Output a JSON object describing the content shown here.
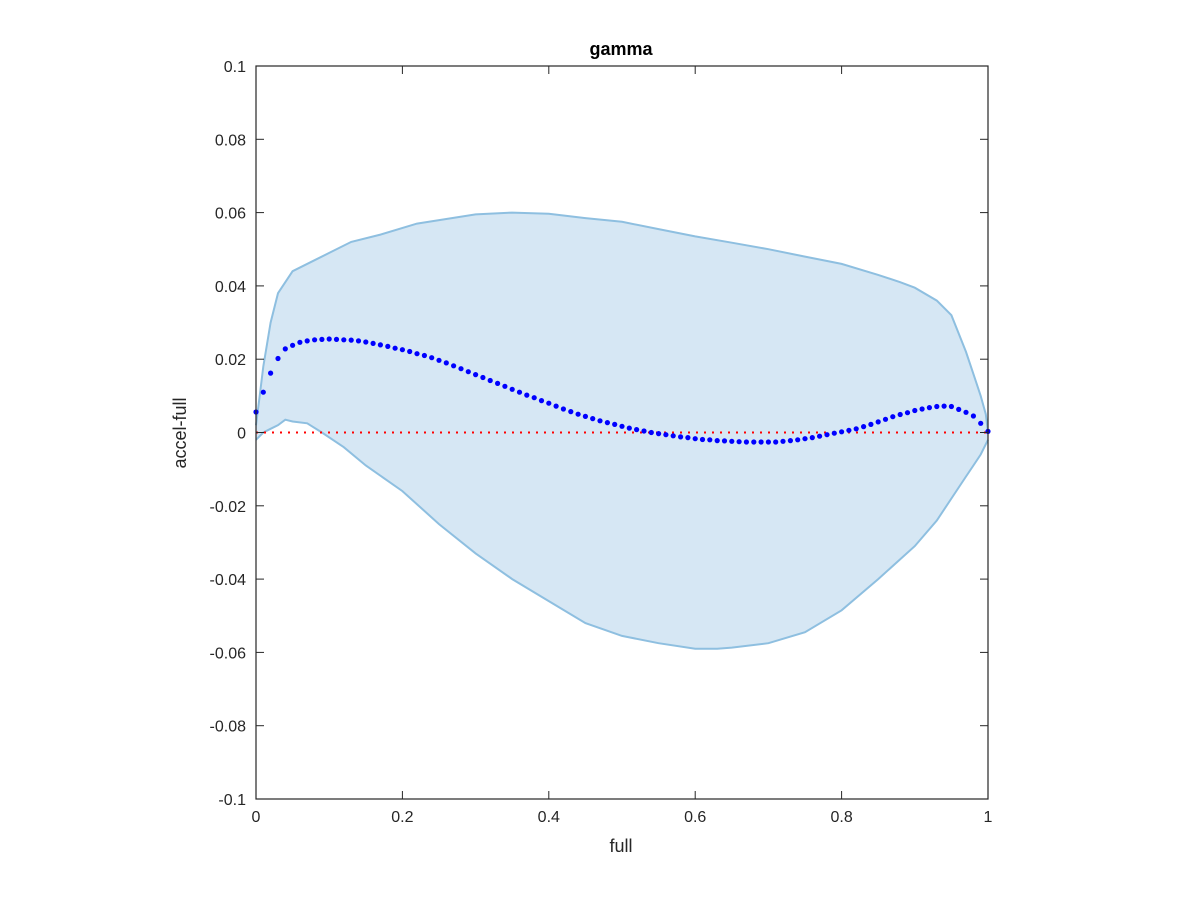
{
  "chart_data": {
    "type": "scatter",
    "title": "gamma",
    "xlabel": "full",
    "ylabel": "accel-full",
    "xlim": [
      0,
      1
    ],
    "ylim": [
      -0.1,
      0.1
    ],
    "xticks": [
      0,
      0.2,
      0.4,
      0.6,
      0.8,
      1
    ],
    "xtick_labels": [
      "0",
      "0.2",
      "0.4",
      "0.6",
      "0.8",
      "1"
    ],
    "yticks": [
      -0.1,
      -0.08,
      -0.06,
      -0.04,
      -0.02,
      0,
      0.02,
      0.04,
      0.06,
      0.08,
      0.1
    ],
    "ytick_labels": [
      "-0.1",
      "-0.08",
      "-0.06",
      "-0.04",
      "-0.02",
      "0",
      "0.02",
      "0.04",
      "0.06",
      "0.08",
      "0.1"
    ],
    "grid": false,
    "band": {
      "fill_color": "#d6e7f4",
      "edge_color": "#8ebfe0",
      "upper": [
        [
          0,
          0.002
        ],
        [
          0.005,
          0.01
        ],
        [
          0.01,
          0.018
        ],
        [
          0.02,
          0.03
        ],
        [
          0.03,
          0.038
        ],
        [
          0.05,
          0.044
        ],
        [
          0.08,
          0.047
        ],
        [
          0.1,
          0.049
        ],
        [
          0.13,
          0.052
        ],
        [
          0.17,
          0.054
        ],
        [
          0.22,
          0.057
        ],
        [
          0.3,
          0.0595
        ],
        [
          0.35,
          0.06
        ],
        [
          0.4,
          0.0597
        ],
        [
          0.45,
          0.0585
        ],
        [
          0.5,
          0.0575
        ],
        [
          0.55,
          0.0555
        ],
        [
          0.6,
          0.0535
        ],
        [
          0.65,
          0.0518
        ],
        [
          0.7,
          0.05
        ],
        [
          0.75,
          0.048
        ],
        [
          0.8,
          0.046
        ],
        [
          0.85,
          0.043
        ],
        [
          0.88,
          0.041
        ],
        [
          0.9,
          0.0395
        ],
        [
          0.93,
          0.036
        ],
        [
          0.95,
          0.032
        ],
        [
          0.96,
          0.027
        ],
        [
          0.97,
          0.022
        ],
        [
          0.98,
          0.016
        ],
        [
          0.99,
          0.01
        ],
        [
          0.997,
          0.005
        ],
        [
          1.0,
          0.0
        ]
      ],
      "lower": [
        [
          0,
          -0.002
        ],
        [
          0.01,
          0.0
        ],
        [
          0.02,
          0.001
        ],
        [
          0.03,
          0.002
        ],
        [
          0.04,
          0.0035
        ],
        [
          0.05,
          0.003
        ],
        [
          0.07,
          0.0025
        ],
        [
          0.09,
          0.0
        ],
        [
          0.12,
          -0.004
        ],
        [
          0.15,
          -0.009
        ],
        [
          0.2,
          -0.016
        ],
        [
          0.25,
          -0.025
        ],
        [
          0.3,
          -0.033
        ],
        [
          0.35,
          -0.04
        ],
        [
          0.4,
          -0.046
        ],
        [
          0.45,
          -0.052
        ],
        [
          0.5,
          -0.0555
        ],
        [
          0.55,
          -0.0575
        ],
        [
          0.6,
          -0.059
        ],
        [
          0.63,
          -0.059
        ],
        [
          0.65,
          -0.0587
        ],
        [
          0.7,
          -0.0575
        ],
        [
          0.75,
          -0.0545
        ],
        [
          0.8,
          -0.0485
        ],
        [
          0.85,
          -0.04
        ],
        [
          0.9,
          -0.031
        ],
        [
          0.93,
          -0.024
        ],
        [
          0.95,
          -0.018
        ],
        [
          0.97,
          -0.012
        ],
        [
          0.98,
          -0.009
        ],
        [
          0.99,
          -0.006
        ],
        [
          1.0,
          -0.002
        ]
      ]
    },
    "zero_line": {
      "y": 0,
      "color": "#ff0000",
      "style": "dotted"
    },
    "series": [
      {
        "color": "#0000ff",
        "marker": "dot",
        "points": [
          [
            0.0,
            0.0056
          ],
          [
            0.01,
            0.011
          ],
          [
            0.02,
            0.0162
          ],
          [
            0.03,
            0.0202
          ],
          [
            0.04,
            0.0228
          ],
          [
            0.05,
            0.0238
          ],
          [
            0.06,
            0.0246
          ],
          [
            0.07,
            0.025
          ],
          [
            0.08,
            0.0253
          ],
          [
            0.09,
            0.0254
          ],
          [
            0.1,
            0.0255
          ],
          [
            0.11,
            0.0254
          ],
          [
            0.12,
            0.0253
          ],
          [
            0.13,
            0.0252
          ],
          [
            0.14,
            0.025
          ],
          [
            0.15,
            0.0247
          ],
          [
            0.16,
            0.0243
          ],
          [
            0.17,
            0.0239
          ],
          [
            0.18,
            0.0235
          ],
          [
            0.19,
            0.023
          ],
          [
            0.2,
            0.0226
          ],
          [
            0.21,
            0.0221
          ],
          [
            0.22,
            0.0215
          ],
          [
            0.23,
            0.021
          ],
          [
            0.24,
            0.0204
          ],
          [
            0.25,
            0.0197
          ],
          [
            0.26,
            0.019
          ],
          [
            0.27,
            0.0182
          ],
          [
            0.28,
            0.0174
          ],
          [
            0.29,
            0.0166
          ],
          [
            0.3,
            0.0158
          ],
          [
            0.31,
            0.015
          ],
          [
            0.32,
            0.0142
          ],
          [
            0.33,
            0.0134
          ],
          [
            0.34,
            0.0126
          ],
          [
            0.35,
            0.0118
          ],
          [
            0.36,
            0.011
          ],
          [
            0.37,
            0.0102
          ],
          [
            0.38,
            0.0095
          ],
          [
            0.39,
            0.0087
          ],
          [
            0.4,
            0.008
          ],
          [
            0.41,
            0.0072
          ],
          [
            0.42,
            0.0064
          ],
          [
            0.43,
            0.0057
          ],
          [
            0.44,
            0.005
          ],
          [
            0.45,
            0.0044
          ],
          [
            0.46,
            0.0038
          ],
          [
            0.47,
            0.0032
          ],
          [
            0.48,
            0.0027
          ],
          [
            0.49,
            0.0022
          ],
          [
            0.5,
            0.0017
          ],
          [
            0.51,
            0.0012
          ],
          [
            0.52,
            0.0008
          ],
          [
            0.53,
            0.0004
          ],
          [
            0.54,
            0.0
          ],
          [
            0.55,
            -0.0003
          ],
          [
            0.56,
            -0.0006
          ],
          [
            0.57,
            -0.0009
          ],
          [
            0.58,
            -0.0012
          ],
          [
            0.59,
            -0.0014
          ],
          [
            0.6,
            -0.0017
          ],
          [
            0.61,
            -0.0019
          ],
          [
            0.62,
            -0.002
          ],
          [
            0.63,
            -0.0022
          ],
          [
            0.64,
            -0.0023
          ],
          [
            0.65,
            -0.0024
          ],
          [
            0.66,
            -0.0025
          ],
          [
            0.67,
            -0.0026
          ],
          [
            0.68,
            -0.0026
          ],
          [
            0.69,
            -0.0026
          ],
          [
            0.7,
            -0.0026
          ],
          [
            0.71,
            -0.0026
          ],
          [
            0.72,
            -0.0024
          ],
          [
            0.73,
            -0.0022
          ],
          [
            0.74,
            -0.002
          ],
          [
            0.75,
            -0.0017
          ],
          [
            0.76,
            -0.0014
          ],
          [
            0.77,
            -0.001
          ],
          [
            0.78,
            -0.0006
          ],
          [
            0.79,
            -0.0002
          ],
          [
            0.8,
            0.0002
          ],
          [
            0.81,
            0.0006
          ],
          [
            0.82,
            0.001
          ],
          [
            0.83,
            0.0016
          ],
          [
            0.84,
            0.0022
          ],
          [
            0.85,
            0.0029
          ],
          [
            0.86,
            0.0036
          ],
          [
            0.87,
            0.0043
          ],
          [
            0.88,
            0.0049
          ],
          [
            0.89,
            0.0054
          ],
          [
            0.9,
            0.006
          ],
          [
            0.91,
            0.0064
          ],
          [
            0.92,
            0.0068
          ],
          [
            0.93,
            0.0071
          ],
          [
            0.94,
            0.0072
          ],
          [
            0.95,
            0.0071
          ],
          [
            0.96,
            0.0063
          ],
          [
            0.97,
            0.0055
          ],
          [
            0.98,
            0.0045
          ],
          [
            0.99,
            0.0025
          ],
          [
            1.0,
            0.0003
          ]
        ]
      }
    ]
  }
}
